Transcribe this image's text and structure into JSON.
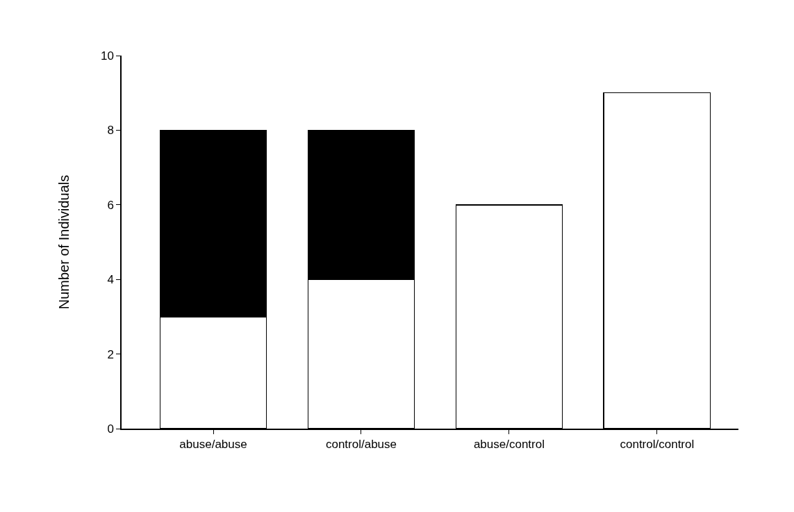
{
  "chart_data": {
    "type": "bar",
    "ylabel": "Number of Individuals",
    "categories": [
      "abuse/abuse",
      "control/abuse",
      "abuse/control",
      "control/control"
    ],
    "stacked": true,
    "series": [
      {
        "color": "#ffffff",
        "values": [
          3,
          4,
          6,
          9
        ]
      },
      {
        "color": "#000000",
        "values": [
          5,
          4,
          null,
          null
        ]
      }
    ],
    "ylim": [
      0,
      10
    ],
    "yticks": [
      0,
      2,
      4,
      6,
      8,
      10
    ]
  }
}
